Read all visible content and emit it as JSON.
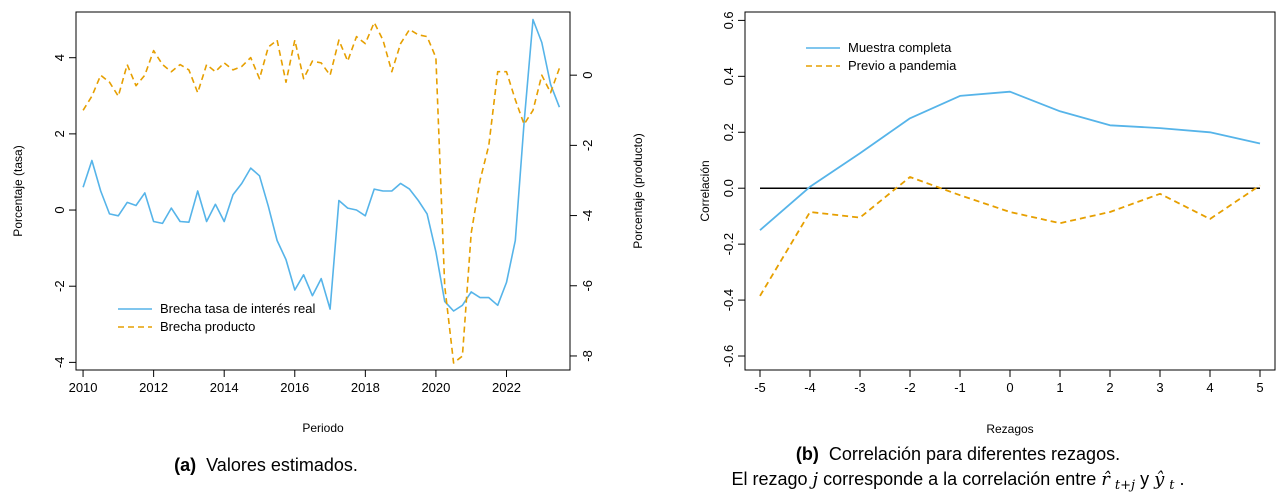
{
  "chart_data": [
    {
      "type": "line",
      "caption_label": "(a)",
      "caption_text": "Valores estimados.",
      "xlabel": "Periodo",
      "ylabel": "Porcentaje (tasa)",
      "ylabel_right": "Porcentaje (producto)",
      "xlim": [
        2009.8,
        2023.8
      ],
      "ylim": [
        -4.2,
        5.2
      ],
      "ylim_right": [
        -8.4,
        1.8
      ],
      "xticks": [
        2010,
        2012,
        2014,
        2016,
        2018,
        2020,
        2022
      ],
      "yticks": [
        -4,
        -2,
        0,
        2,
        4
      ],
      "yticks_right": [
        -8,
        -6,
        -4,
        -2,
        0
      ],
      "legend_position": "bottom-left",
      "grid": false,
      "series": [
        {
          "name": "Brecha tasa de interés real",
          "color": "#56B4E9",
          "dash": "solid",
          "axis": "left",
          "x": [
            2010.0,
            2010.25,
            2010.5,
            2010.75,
            2011.0,
            2011.25,
            2011.5,
            2011.75,
            2012.0,
            2012.25,
            2012.5,
            2012.75,
            2013.0,
            2013.25,
            2013.5,
            2013.75,
            2014.0,
            2014.25,
            2014.5,
            2014.75,
            2015.0,
            2015.25,
            2015.5,
            2015.75,
            2016.0,
            2016.25,
            2016.5,
            2016.75,
            2017.0,
            2017.25,
            2017.5,
            2017.75,
            2018.0,
            2018.25,
            2018.5,
            2018.75,
            2019.0,
            2019.25,
            2019.5,
            2019.75,
            2020.0,
            2020.25,
            2020.5,
            2020.75,
            2021.0,
            2021.25,
            2021.5,
            2021.75,
            2022.0,
            2022.25,
            2022.5,
            2022.75,
            2023.0,
            2023.25,
            2023.5
          ],
          "y": [
            0.6,
            1.3,
            0.5,
            -0.1,
            -0.15,
            0.2,
            0.12,
            0.45,
            -0.3,
            -0.35,
            0.05,
            -0.3,
            -0.32,
            0.5,
            -0.3,
            0.15,
            -0.3,
            0.4,
            0.7,
            1.1,
            0.9,
            0.1,
            -0.8,
            -1.3,
            -2.1,
            -1.7,
            -2.25,
            -1.8,
            -2.6,
            0.25,
            0.05,
            0.0,
            -0.15,
            0.55,
            0.5,
            0.5,
            0.7,
            0.55,
            0.25,
            -0.1,
            -1.1,
            -2.4,
            -2.65,
            -2.5,
            -2.15,
            -2.3,
            -2.3,
            -2.5,
            -1.9,
            -0.8,
            2.3,
            5.0,
            4.4,
            3.3,
            2.7
          ]
        },
        {
          "name": "Brecha producto",
          "color": "#E69F00",
          "dash": "dashed",
          "axis": "right",
          "x": [
            2010.0,
            2010.25,
            2010.5,
            2010.75,
            2011.0,
            2011.25,
            2011.5,
            2011.75,
            2012.0,
            2012.25,
            2012.5,
            2012.75,
            2013.0,
            2013.25,
            2013.5,
            2013.75,
            2014.0,
            2014.25,
            2014.5,
            2014.75,
            2015.0,
            2015.25,
            2015.5,
            2015.75,
            2016.0,
            2016.25,
            2016.5,
            2016.75,
            2017.0,
            2017.25,
            2017.5,
            2017.75,
            2018.0,
            2018.25,
            2018.5,
            2018.75,
            2019.0,
            2019.25,
            2019.5,
            2019.75,
            2020.0,
            2020.25,
            2020.5,
            2020.75,
            2021.0,
            2021.25,
            2021.5,
            2021.75,
            2022.0,
            2022.25,
            2022.5,
            2022.75,
            2023.0,
            2023.25,
            2023.5
          ],
          "y": [
            -1.0,
            -0.6,
            0.0,
            -0.2,
            -0.6,
            0.3,
            -0.3,
            0.0,
            0.7,
            0.3,
            0.1,
            0.3,
            0.15,
            -0.5,
            0.3,
            0.1,
            0.35,
            0.15,
            0.25,
            0.5,
            -0.1,
            0.8,
            1.0,
            -0.2,
            1.0,
            -0.1,
            0.4,
            0.35,
            0.0,
            1.0,
            0.4,
            1.1,
            0.9,
            1.5,
            1.0,
            0.1,
            0.9,
            1.3,
            1.15,
            1.1,
            0.5,
            -6.0,
            -8.2,
            -8.0,
            -4.5,
            -3.0,
            -2.0,
            0.1,
            0.1,
            -0.7,
            -1.4,
            -1.0,
            0.0,
            -0.5,
            0.2
          ]
        }
      ]
    },
    {
      "type": "line",
      "caption_label": "(b)",
      "caption_text": "Correlación para diferentes rezagos.",
      "caption_line2_prefix": "El rezago ",
      "caption_j": "j",
      "caption_line2_middle": " corresponde a la correlación entre ",
      "caption_r": "r̂",
      "caption_r_sub": "t+j",
      "caption_and": " y ",
      "caption_y": "ŷ",
      "caption_y_sub": "t",
      "caption_end": ".",
      "xlabel": "Rezagos",
      "ylabel": "Correlación",
      "xlim": [
        -5.3,
        5.3
      ],
      "ylim": [
        -0.65,
        0.63
      ],
      "xticks": [
        -5,
        -4,
        -3,
        -2,
        -1,
        0,
        1,
        2,
        3,
        4,
        5
      ],
      "yticks": [
        -0.6,
        -0.4,
        -0.2,
        0.0,
        0.2,
        0.4,
        0.6
      ],
      "ytick_labels": [
        "-0.6",
        "-0.4",
        "-0.2",
        "0.0",
        "0.2",
        "0.4",
        "0.6"
      ],
      "hline": 0.0,
      "legend_position": "top-left",
      "grid": false,
      "series": [
        {
          "name": "Muestra completa",
          "color": "#56B4E9",
          "dash": "solid",
          "x": [
            -5,
            -4,
            -3,
            -2,
            -1,
            0,
            1,
            2,
            3,
            4,
            5
          ],
          "y": [
            -0.15,
            0.005,
            0.125,
            0.25,
            0.33,
            0.345,
            0.275,
            0.225,
            0.215,
            0.2,
            0.16
          ]
        },
        {
          "name": "Previo a pandemia",
          "color": "#E69F00",
          "dash": "dashed",
          "x": [
            -5,
            -4,
            -3,
            -2,
            -1,
            0,
            1,
            2,
            3,
            4,
            5
          ],
          "y": [
            -0.385,
            -0.085,
            -0.105,
            0.04,
            -0.025,
            -0.085,
            -0.125,
            -0.085,
            -0.02,
            -0.11,
            0.01
          ]
        }
      ]
    }
  ]
}
